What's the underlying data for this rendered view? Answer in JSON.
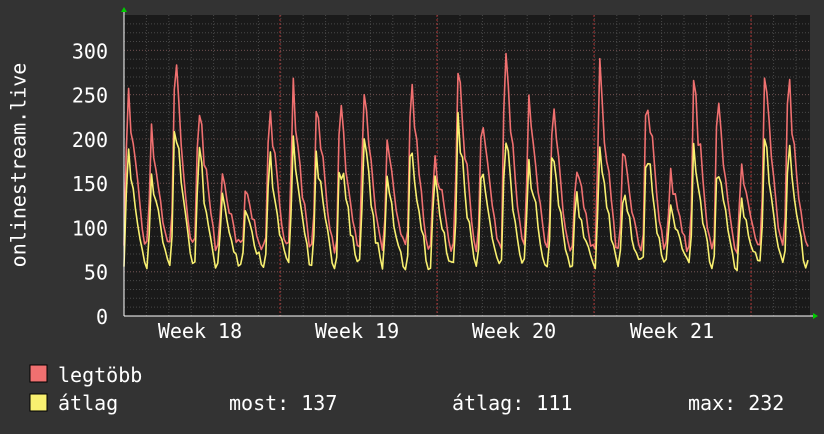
{
  "chart_data": {
    "type": "line",
    "ylabel": "onlinestream.live",
    "ylim": [
      0,
      340
    ],
    "yticks": [
      0,
      50,
      100,
      150,
      200,
      250,
      300
    ],
    "xtick_labels": [
      "Week 18",
      "Week 19",
      "Week 20",
      "Week 21"
    ],
    "grid": true,
    "legend_placement": "bottom-left",
    "colors": {
      "background": "#333333",
      "plot_area": "#1a1a1a",
      "legtobb": "#f07070",
      "atlag": "#f8f070",
      "week_divider": "#aa3333",
      "axis_arrow": "#00cc00"
    },
    "series": [
      {
        "name": "legtöbb",
        "peaks": [
          268,
          215,
          288,
          262,
          165,
          148,
          248,
          272,
          245,
          250,
          278,
          200,
          275,
          195,
          298,
          242,
          302,
          252,
          245,
          178,
          288,
          188,
          275,
          165,
          272,
          250,
          172,
          282,
          280
        ]
      },
      {
        "name": "átlag",
        "peaks": [
          197,
          172,
          230,
          190,
          135,
          122,
          187,
          200,
          180,
          188,
          210,
          152,
          200,
          155,
          230,
          175,
          212,
          180,
          188,
          140,
          200,
          145,
          205,
          128,
          195,
          180,
          135,
          205,
          198
        ]
      }
    ]
  },
  "legend": {
    "max_label": "legtöbb",
    "avg_label": "átlag",
    "stats": {
      "now": "most: 137",
      "average": "átlag: 111",
      "max": "max: 232"
    }
  }
}
